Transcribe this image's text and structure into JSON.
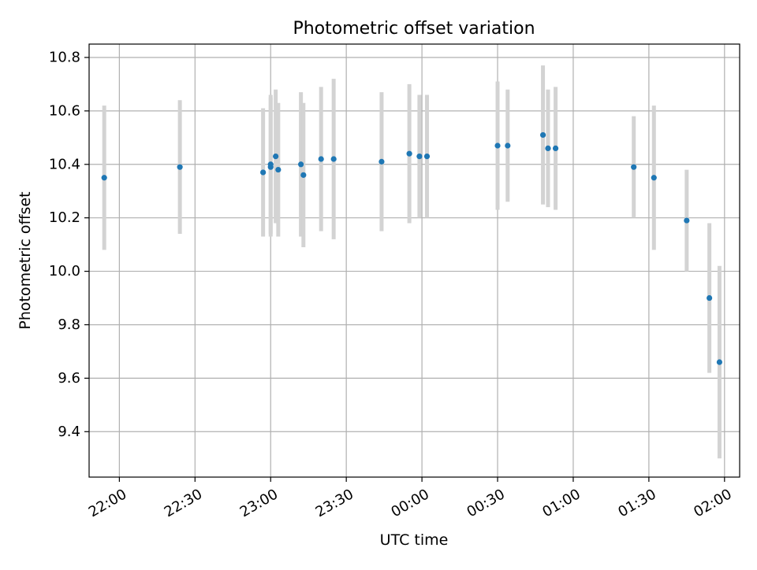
{
  "chart_data": {
    "type": "scatter",
    "title": "Photometric offset variation",
    "xlabel": "UTC time",
    "ylabel": "Photometric offset",
    "x_axis_type": "time",
    "x_ticks": [
      "22:00",
      "22:30",
      "23:00",
      "23:30",
      "00:00",
      "00:30",
      "01:00",
      "01:30",
      "02:00"
    ],
    "y_ticks": [
      "9.4",
      "9.6",
      "9.8",
      "10.0",
      "10.2",
      "10.4",
      "10.6",
      "10.8"
    ],
    "xlim": [
      "21:48",
      "02:06"
    ],
    "ylim": [
      9.23,
      10.85
    ],
    "grid": true,
    "legend": "none",
    "colors": {
      "points": "#1f77b4",
      "errorbars": "#d3d3d3",
      "grid": "#b0b0b0",
      "axes": "#000000"
    },
    "series": [
      {
        "points": [
          {
            "t": "21:54",
            "y": 10.35,
            "err": 0.27
          },
          {
            "t": "22:24",
            "y": 10.39,
            "err": 0.25
          },
          {
            "t": "22:57",
            "y": 10.37,
            "err": 0.24
          },
          {
            "t": "23:00",
            "y": 10.39,
            "err": 0.26
          },
          {
            "t": "23:00",
            "y": 10.4,
            "err": 0.26
          },
          {
            "t": "23:02",
            "y": 10.43,
            "err": 0.25
          },
          {
            "t": "23:03",
            "y": 10.38,
            "err": 0.25
          },
          {
            "t": "23:12",
            "y": 10.4,
            "err": 0.27
          },
          {
            "t": "23:13",
            "y": 10.36,
            "err": 0.27
          },
          {
            "t": "23:20",
            "y": 10.42,
            "err": 0.27
          },
          {
            "t": "23:25",
            "y": 10.42,
            "err": 0.3
          },
          {
            "t": "23:44",
            "y": 10.41,
            "err": 0.26
          },
          {
            "t": "23:55",
            "y": 10.44,
            "err": 0.26
          },
          {
            "t": "23:59",
            "y": 10.43,
            "err": 0.23
          },
          {
            "t": "00:02",
            "y": 10.43,
            "err": 0.23
          },
          {
            "t": "00:30",
            "y": 10.47,
            "err": 0.24
          },
          {
            "t": "00:34",
            "y": 10.47,
            "err": 0.21
          },
          {
            "t": "00:48",
            "y": 10.51,
            "err": 0.26
          },
          {
            "t": "00:50",
            "y": 10.46,
            "err": 0.22
          },
          {
            "t": "00:53",
            "y": 10.46,
            "err": 0.23
          },
          {
            "t": "01:24",
            "y": 10.39,
            "err": 0.19
          },
          {
            "t": "01:32",
            "y": 10.35,
            "err": 0.27
          },
          {
            "t": "01:45",
            "y": 10.19,
            "err": 0.19
          },
          {
            "t": "01:54",
            "y": 9.9,
            "err": 0.28
          },
          {
            "t": "01:58",
            "y": 9.66,
            "err": 0.36
          }
        ]
      }
    ]
  }
}
